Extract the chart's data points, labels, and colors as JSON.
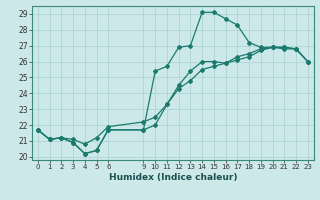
{
  "xlabel": "Humidex (Indice chaleur)",
  "bg_color": "#cde8e8",
  "grid_color": "#b0d8d8",
  "line_color": "#1a7a6e",
  "marker_color": "#1a7a6e",
  "xlim": [
    -0.5,
    23.5
  ],
  "ylim": [
    19.8,
    29.5
  ],
  "xticks": [
    0,
    1,
    2,
    3,
    4,
    5,
    6,
    9,
    10,
    11,
    12,
    13,
    14,
    15,
    16,
    17,
    18,
    19,
    20,
    21,
    22,
    23
  ],
  "yticks": [
    20,
    21,
    22,
    23,
    24,
    25,
    26,
    27,
    28,
    29
  ],
  "line1_x": [
    0,
    1,
    2,
    3,
    4,
    5,
    6,
    9,
    10,
    11,
    12,
    13,
    14,
    15,
    16,
    17,
    18,
    19,
    20,
    21,
    22,
    23
  ],
  "line1_y": [
    21.7,
    21.1,
    21.2,
    20.9,
    20.2,
    20.4,
    21.7,
    21.7,
    25.4,
    25.7,
    26.9,
    27.0,
    29.1,
    29.1,
    28.7,
    28.3,
    27.2,
    26.9,
    26.9,
    26.8,
    26.8,
    26.0
  ],
  "line2_x": [
    0,
    1,
    2,
    3,
    4,
    5,
    6,
    9,
    10,
    11,
    12,
    13,
    14,
    15,
    16,
    17,
    18,
    19,
    20,
    21,
    22,
    23
  ],
  "line2_y": [
    21.7,
    21.1,
    21.2,
    21.1,
    20.8,
    21.2,
    21.9,
    22.2,
    22.5,
    23.3,
    24.3,
    24.8,
    25.5,
    25.7,
    25.9,
    26.3,
    26.5,
    26.8,
    26.9,
    26.9,
    26.8,
    26.0
  ],
  "line3_x": [
    0,
    1,
    2,
    3,
    4,
    5,
    6,
    9,
    10,
    11,
    12,
    13,
    14,
    15,
    16,
    17,
    18,
    19,
    20,
    21,
    22,
    23
  ],
  "line3_y": [
    21.7,
    21.1,
    21.2,
    20.9,
    20.2,
    20.4,
    21.7,
    21.7,
    22.0,
    23.3,
    24.5,
    25.4,
    26.0,
    26.0,
    25.9,
    26.1,
    26.3,
    26.7,
    26.9,
    26.9,
    26.8,
    26.0
  ]
}
